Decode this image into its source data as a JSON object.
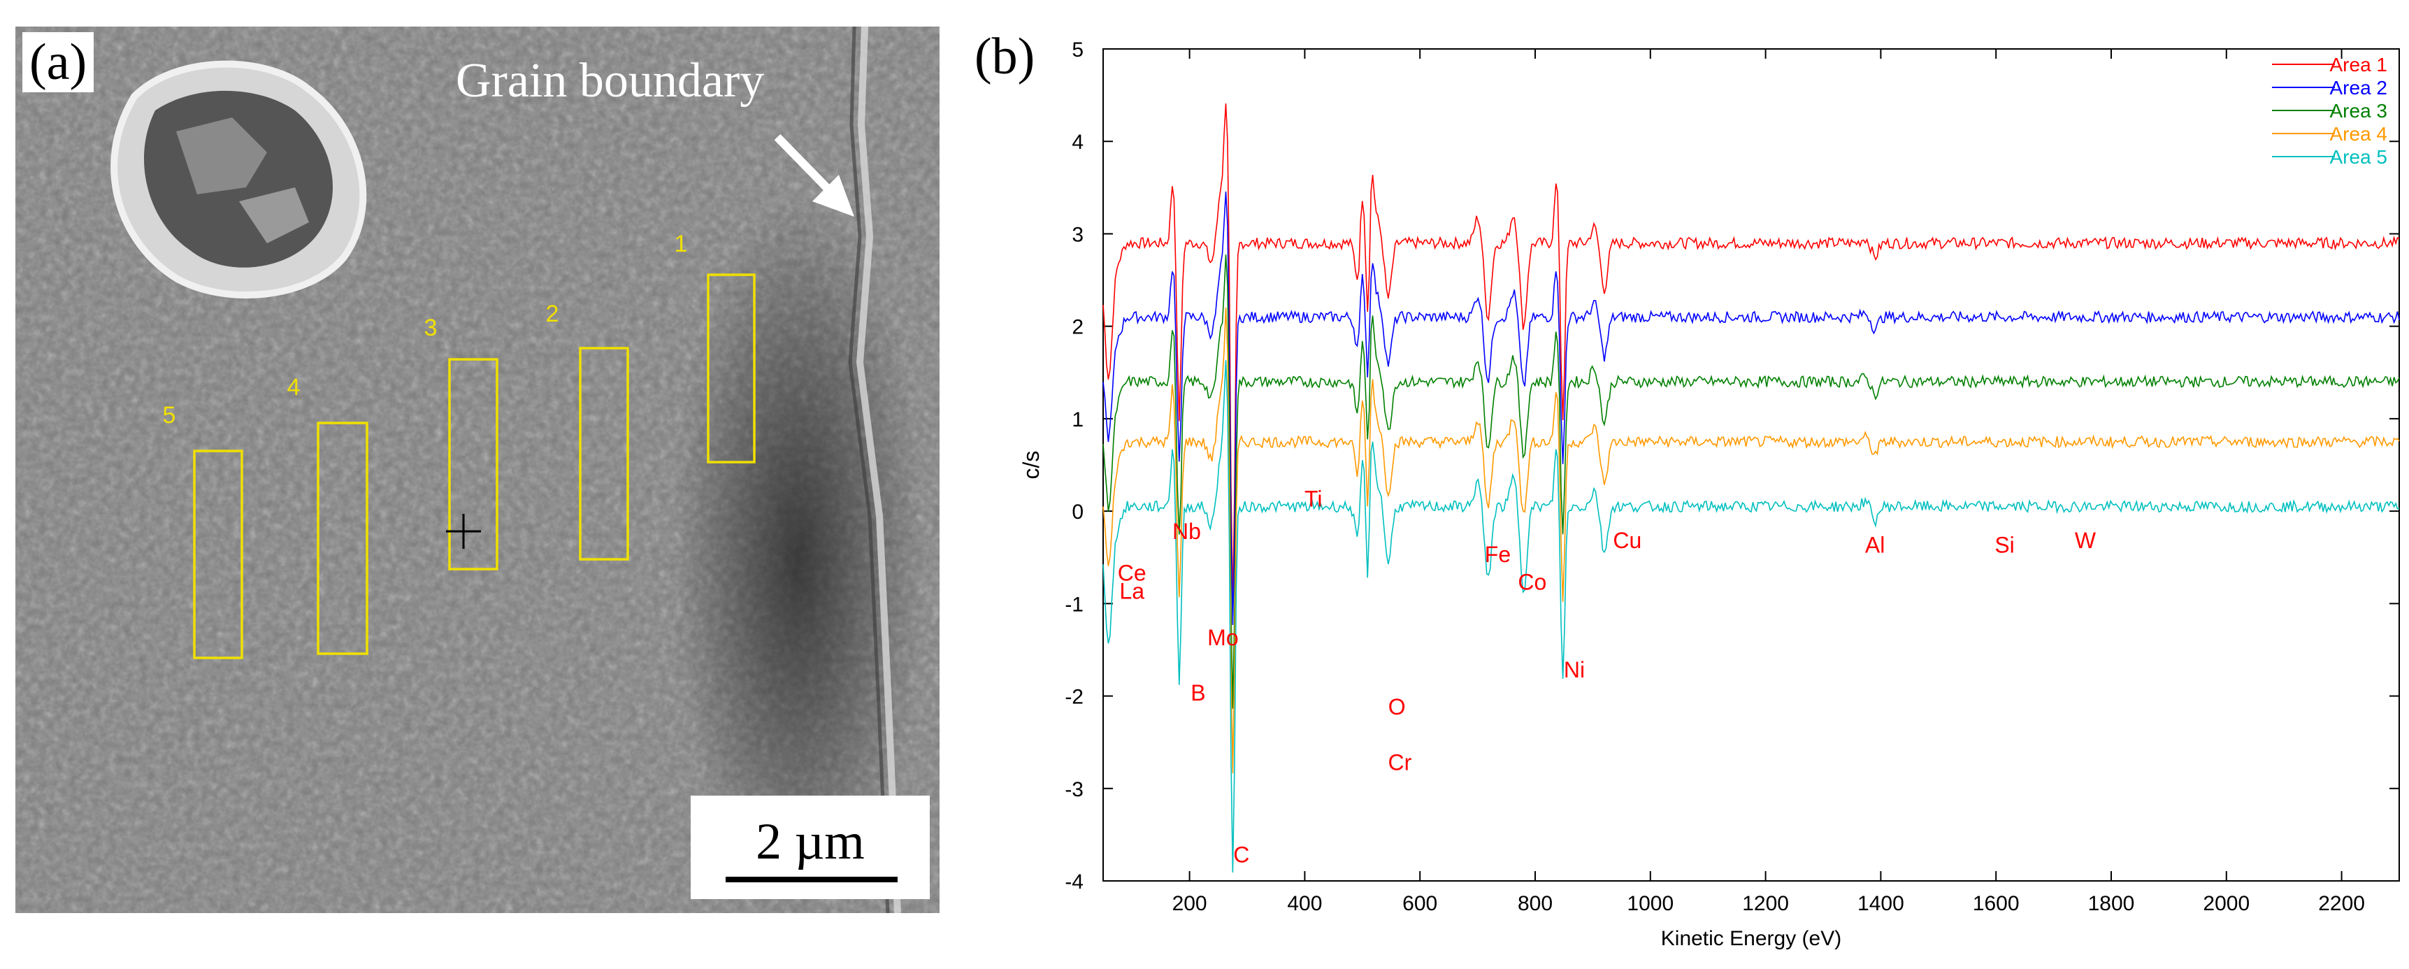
{
  "panels": {
    "a_label": "(a)",
    "b_label": "(b)"
  },
  "sem_image": {
    "grain_boundary_label": "Grain boundary",
    "scale_bar_label": "2 µm",
    "areas": [
      {
        "label": "1"
      },
      {
        "label": "2"
      },
      {
        "label": "3"
      },
      {
        "label": "4"
      },
      {
        "label": "5"
      }
    ],
    "area_color": "#f0e000"
  },
  "chart_data": {
    "type": "line",
    "title": "",
    "xlabel": "Kinetic Energy (eV)",
    "ylabel": "c/s",
    "xlim": [
      50,
      2300
    ],
    "ylim": [
      -4,
      5
    ],
    "xticks": [
      200,
      400,
      600,
      800,
      1000,
      1200,
      1400,
      1600,
      1800,
      2000,
      2200
    ],
    "yticks": [
      -4,
      -3,
      -2,
      -1,
      0,
      1,
      2,
      3,
      4,
      5
    ],
    "grid": false,
    "legend_position": "top-right",
    "series": [
      {
        "name": "Area 1",
        "color": "#ff0000",
        "baseline": 2.9
      },
      {
        "name": "Area 2",
        "color": "#0000ff",
        "baseline": 2.1
      },
      {
        "name": "Area 3",
        "color": "#008000",
        "baseline": 1.4
      },
      {
        "name": "Area 4",
        "color": "#ff9900",
        "baseline": 0.75
      },
      {
        "name": "Area 5",
        "color": "#00bfbf",
        "baseline": 0.05
      }
    ],
    "peaks": [
      {
        "x": 60,
        "depth": 1.0
      },
      {
        "x": 182,
        "depth": 1.9
      },
      {
        "x": 255,
        "depth": -0.6
      },
      {
        "x": 275,
        "depth": 4.0
      },
      {
        "x": 510,
        "depth": 2.1
      },
      {
        "x": 512,
        "depth": -1.5
      },
      {
        "x": 545,
        "depth": 0.6
      },
      {
        "x": 718,
        "depth": 0.8
      },
      {
        "x": 780,
        "depth": 0.9
      },
      {
        "x": 848,
        "depth": 1.9
      },
      {
        "x": 920,
        "depth": 0.5
      },
      {
        "x": 1390,
        "depth": 0.15
      }
    ],
    "annotations": [
      {
        "text": "Ce",
        "x": 100,
        "y": -0.75
      },
      {
        "text": "La",
        "x": 100,
        "y": -0.95
      },
      {
        "text": "Nb",
        "x": 195,
        "y": -0.3
      },
      {
        "text": "Mo",
        "x": 258,
        "y": -1.45
      },
      {
        "text": "B",
        "x": 215,
        "y": -2.05
      },
      {
        "text": "C",
        "x": 290,
        "y": -3.8
      },
      {
        "text": "Ti",
        "x": 415,
        "y": 0.05
      },
      {
        "text": "O",
        "x": 560,
        "y": -2.2
      },
      {
        "text": "Cr",
        "x": 565,
        "y": -2.8
      },
      {
        "text": "Fe",
        "x": 735,
        "y": -0.55
      },
      {
        "text": "Co",
        "x": 795,
        "y": -0.85
      },
      {
        "text": "Ni",
        "x": 868,
        "y": -1.8
      },
      {
        "text": "Cu",
        "x": 960,
        "y": -0.4
      },
      {
        "text": "Al",
        "x": 1390,
        "y": -0.45
      },
      {
        "text": "Si",
        "x": 1615,
        "y": -0.45
      },
      {
        "text": "W",
        "x": 1755,
        "y": -0.4
      }
    ],
    "annotation_color": "#ff0000"
  }
}
